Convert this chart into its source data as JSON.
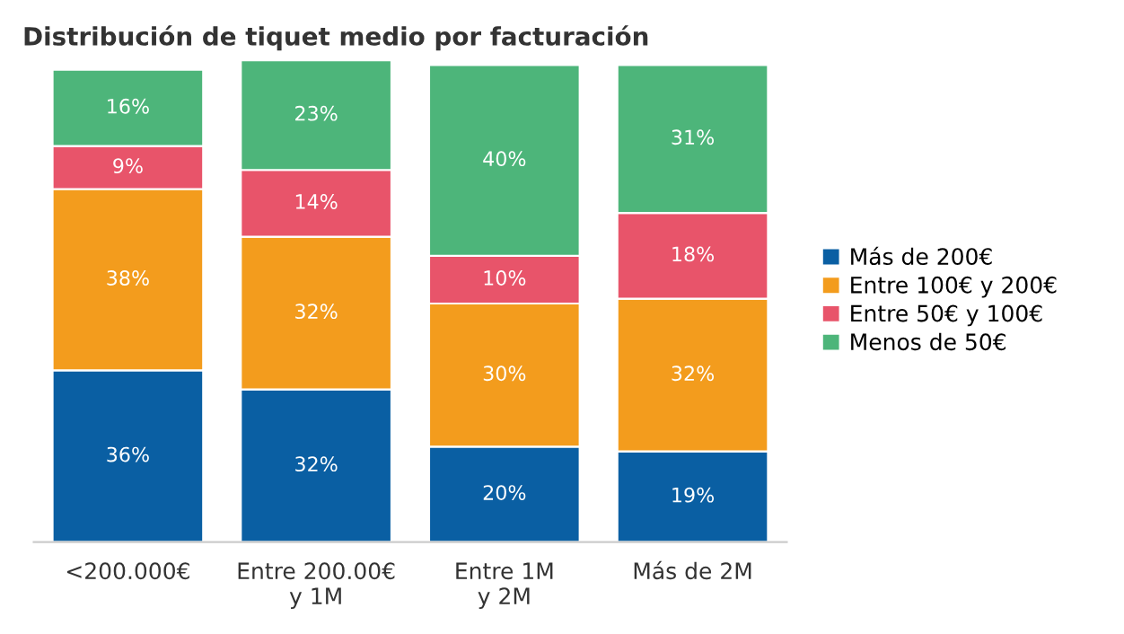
{
  "chart_data": {
    "type": "bar",
    "stacked": true,
    "title": "Distribución de tiquet medio por facturación",
    "categories": [
      "<200.000€",
      "Entre 200.00€\ny 1M",
      "Entre 1M\ny 2M",
      "Más de 2M"
    ],
    "series": [
      {
        "name": "Más de 200€",
        "color": "#0a5fa3",
        "values": [
          36,
          32,
          20,
          19
        ],
        "value_labels": [
          "36%",
          "32%",
          "20%",
          "19%"
        ]
      },
      {
        "name": "Entre 100€ y 200€",
        "color": "#f39c1d",
        "values": [
          38,
          32,
          30,
          32
        ],
        "value_labels": [
          "38%",
          "32%",
          "30%",
          "32%"
        ]
      },
      {
        "name": "Entre 50€ y 100€",
        "color": "#e8546a",
        "values": [
          9,
          14,
          10,
          18
        ],
        "value_labels": [
          "9%",
          "14%",
          "10%",
          "18%"
        ]
      },
      {
        "name": "Menos de 50€",
        "color": "#4db57a",
        "values": [
          16,
          23,
          40,
          31
        ],
        "value_labels": [
          "16%",
          "23%",
          "40%",
          "31%"
        ]
      }
    ],
    "legend": "right",
    "grid": false
  }
}
